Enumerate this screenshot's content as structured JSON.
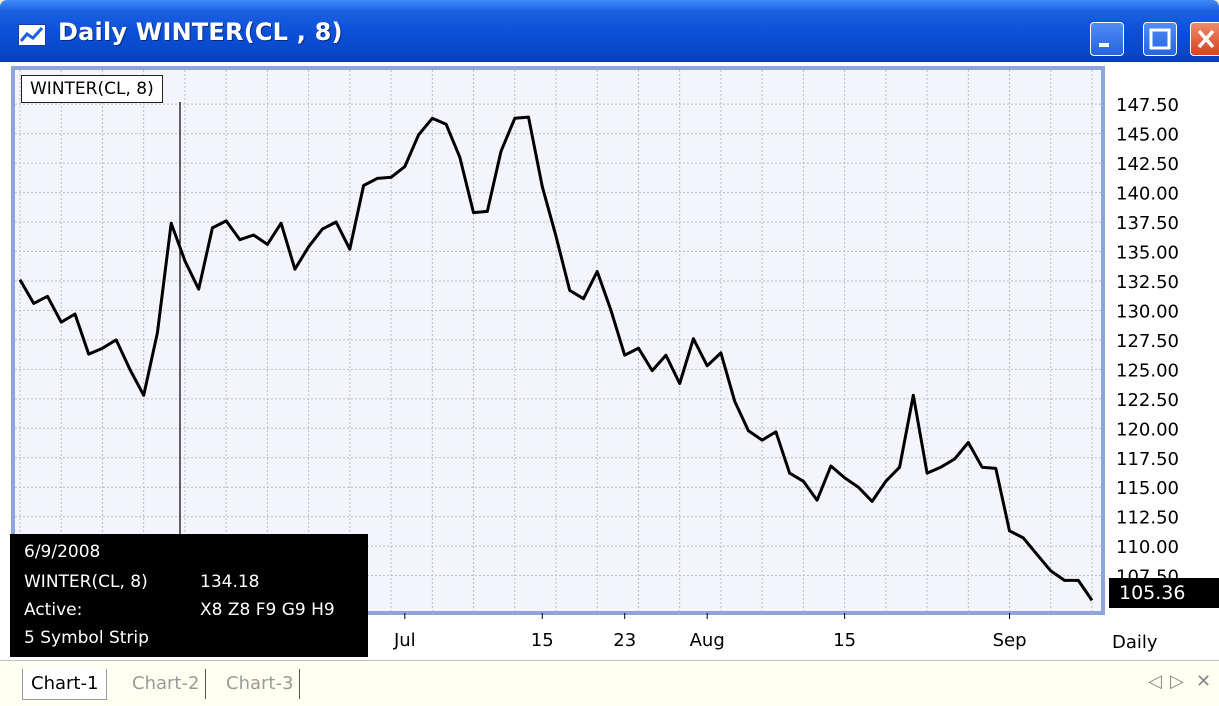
{
  "window": {
    "title": "Daily WINTER(CL , 8)"
  },
  "chart_data": {
    "type": "line",
    "series": [
      {
        "name": "WINTER(CL, 8)",
        "values": [
          132.6,
          130.6,
          131.2,
          129.0,
          129.7,
          126.3,
          126.8,
          127.5,
          125.0,
          122.8,
          128.1,
          137.4,
          134.2,
          131.8,
          137.0,
          137.6,
          136.0,
          136.4,
          135.6,
          137.4,
          133.5,
          135.4,
          136.9,
          137.5,
          135.2,
          140.6,
          141.2,
          141.3,
          142.2,
          144.9,
          146.3,
          145.8,
          143.0,
          138.3,
          138.4,
          143.5,
          146.3,
          146.4,
          140.5,
          136.3,
          131.7,
          131.0,
          133.3,
          130.0,
          126.2,
          126.8,
          124.9,
          126.2,
          123.8,
          127.6,
          125.3,
          126.4,
          122.3,
          119.8,
          119.0,
          119.7,
          116.2,
          115.5,
          113.9,
          116.8,
          115.8,
          115.0,
          113.8,
          115.5,
          116.7,
          122.8,
          116.2,
          116.7,
          117.4,
          118.8,
          116.7,
          116.6,
          111.3,
          110.7,
          109.3,
          107.9,
          107.1,
          107.1,
          105.4
        ]
      }
    ],
    "last_value": "105.36",
    "ylim": [
      104.5,
      150.4
    ],
    "y_ticks": [
      "147.50",
      "145.00",
      "142.50",
      "140.00",
      "137.50",
      "135.00",
      "132.50",
      "130.00",
      "127.50",
      "125.00",
      "122.50",
      "120.00",
      "117.50",
      "115.00",
      "112.50",
      "110.00",
      "107.50"
    ],
    "x_tick_labels": [
      "Jul",
      "15",
      "23",
      "Aug",
      "15",
      "Sep"
    ],
    "x_tick_index": [
      28,
      38,
      44,
      50,
      60,
      72
    ],
    "period_label": "Daily",
    "grid": true,
    "colors": {
      "line": "#000000",
      "plot_bg": "#f4f4fd",
      "plot_border": "#8ea4dc",
      "grid": "#bdbdbd"
    }
  },
  "info": {
    "date": "6/9/2008",
    "series_label": "WINTER(CL, 8)",
    "series_value": "134.18",
    "active_label": "Active:",
    "active_value": "X8 Z8 F9 G9 H9",
    "strip_label": "5 Symbol Strip"
  },
  "legend_label": "WINTER(CL, 8)",
  "tabs": [
    {
      "label": "Chart-1",
      "active": true
    },
    {
      "label": "Chart-2",
      "active": false
    },
    {
      "label": "Chart-3",
      "active": false
    }
  ],
  "icons": {
    "app": "chart-line-icon",
    "minimize": "minimize-icon",
    "maximize": "maximize-icon",
    "close": "close-icon",
    "scroll_left": "triangle-left-icon",
    "scroll_right": "triangle-right-icon",
    "tab_close": "close-icon"
  }
}
